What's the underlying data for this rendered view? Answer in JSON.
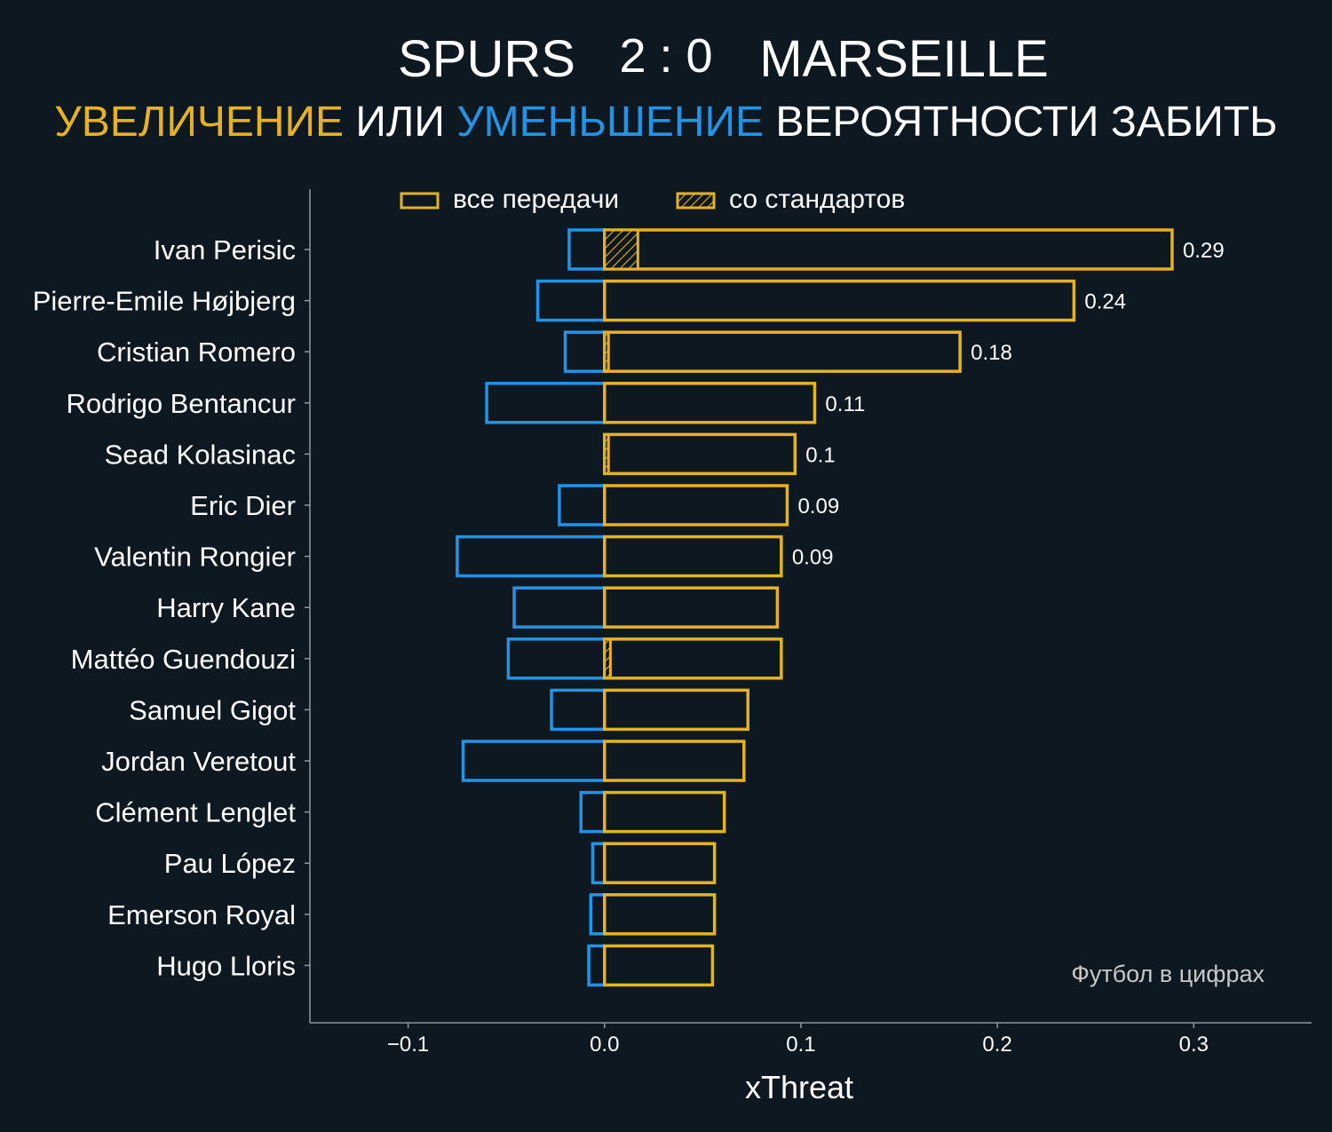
{
  "header": {
    "home_team": "SPURS",
    "score": "2 : 0",
    "away_team": "MARSEILLE",
    "subtitle_parts": [
      {
        "text": "УВЕЛИЧЕНИЕ",
        "role": "increase"
      },
      {
        "text": " ИЛИ ",
        "role": "plain"
      },
      {
        "text": "УМЕНЬШЕНИЕ",
        "role": "decrease"
      },
      {
        "text": " ВЕРОЯТНОСТИ ЗАБИТЬ",
        "role": "plain"
      }
    ]
  },
  "colors": {
    "background": "#0e1820",
    "increase": "#e5b223",
    "decrease": "#2393e6",
    "text": "#ffffff",
    "muted": "#c8c8c8",
    "axis": "#8a9aa2"
  },
  "watermark": "Футбол в цифрах",
  "chart_data": {
    "type": "bar",
    "orientation": "horizontal",
    "xlabel": "xThreat",
    "xlim": [
      -0.15,
      0.36
    ],
    "xticks": [
      -0.1,
      0.0,
      0.1,
      0.2,
      0.3
    ],
    "xtick_labels": [
      "−0.1",
      "0.0",
      "0.1",
      "0.2",
      "0.3"
    ],
    "legend": {
      "placement": "top",
      "entries": [
        {
          "label": "все передачи",
          "style": "outline"
        },
        {
          "label": "со стандартов",
          "style": "hatched"
        }
      ]
    },
    "categories": [
      "Ivan Perisic",
      "Pierre-Emile Højbjerg",
      "Cristian Romero",
      "Rodrigo Bentancur",
      "Sead Kolasinac",
      "Eric Dier",
      "Valentin Rongier",
      "Harry Kane",
      "Mattéo Guendouzi",
      "Samuel Gigot",
      "Jordan Veretout",
      "Clément Lenglet",
      "Pau López",
      "Emerson Royal",
      "Hugo Lloris"
    ],
    "series": [
      {
        "name": "все передачи",
        "role": "increase",
        "values": [
          0.289,
          0.239,
          0.181,
          0.107,
          0.097,
          0.093,
          0.09,
          0.088,
          0.09,
          0.073,
          0.071,
          0.061,
          0.056,
          0.056,
          0.055
        ]
      },
      {
        "name": "все передачи",
        "role": "decrease",
        "values": [
          -0.018,
          -0.034,
          -0.02,
          -0.06,
          0.0,
          -0.023,
          -0.075,
          -0.046,
          -0.049,
          -0.027,
          -0.072,
          -0.012,
          -0.006,
          -0.007,
          -0.008
        ]
      },
      {
        "name": "со стандартов",
        "role": "set-piece",
        "values": [
          0.017,
          0.0,
          0.002,
          0.0,
          0.002,
          0.0,
          0.0,
          0.0,
          0.003,
          0.0,
          0.0,
          0.0,
          0.0,
          0.0,
          0.0
        ]
      }
    ],
    "data_labels": [
      "0.29",
      "0.24",
      "0.18",
      "0.11",
      "0.1",
      "0.09",
      "0.09",
      "",
      "",
      "",
      "",
      "",
      "",
      "",
      ""
    ],
    "grid": false
  }
}
